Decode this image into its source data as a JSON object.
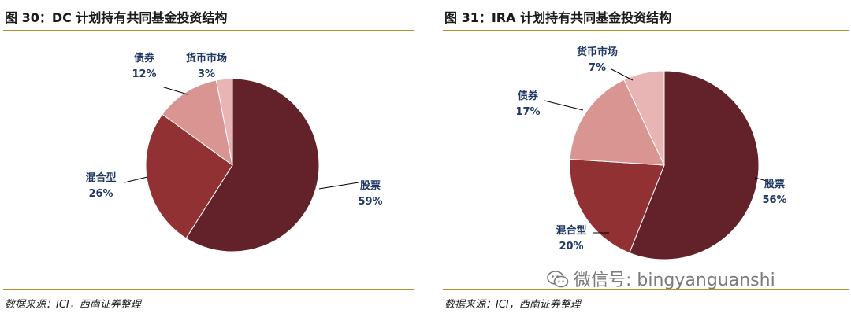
{
  "chart_data": [
    {
      "type": "pie",
      "title": "图 30：DC 计划持有共同基金投资结构",
      "source": "数据来源：ICI，西南证券整理",
      "slices": [
        {
          "label": "股票",
          "value": 59,
          "value_label": "59%",
          "color": "#63222a"
        },
        {
          "label": "混合型",
          "value": 26,
          "value_label": "26%",
          "color": "#923134"
        },
        {
          "label": "债券",
          "value": 12,
          "value_label": "12%",
          "color": "#d99592"
        },
        {
          "label": "货币市场",
          "value": 3,
          "value_label": "3%",
          "color": "#e8b4b4"
        }
      ]
    },
    {
      "type": "pie",
      "title": "图 31：IRA 计划持有共同基金投资结构",
      "source": "数据来源：ICI，西南证券整理",
      "slices": [
        {
          "label": "股票",
          "value": 56,
          "value_label": "56%",
          "color": "#63222a"
        },
        {
          "label": "混合型",
          "value": 20,
          "value_label": "20%",
          "color": "#923134"
        },
        {
          "label": "债券",
          "value": 17,
          "value_label": "17%",
          "color": "#d99592"
        },
        {
          "label": "货币市场",
          "value": 7,
          "value_label": "7%",
          "color": "#e8b4b4"
        }
      ]
    }
  ],
  "watermark": {
    "text": "微信号: bingyanguanshi",
    "icon": "wechat-icon"
  }
}
